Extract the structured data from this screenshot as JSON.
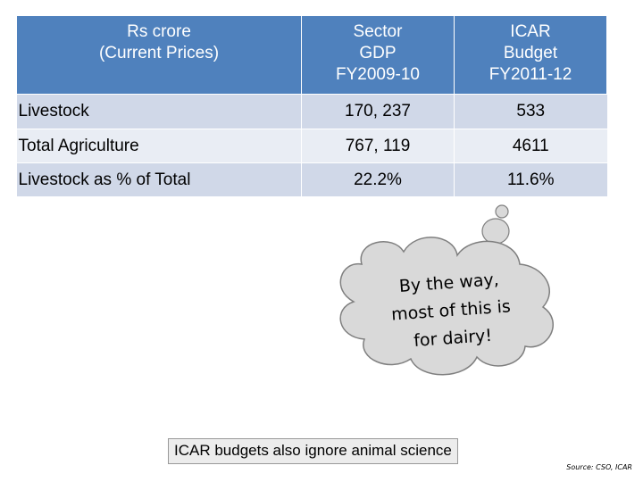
{
  "table": {
    "headers": [
      [
        "Rs crore",
        "(Current Prices)"
      ],
      [
        "Sector",
        "GDP",
        "FY2009-10"
      ],
      [
        "ICAR",
        "Budget",
        "FY2011-12"
      ]
    ],
    "rows": [
      {
        "label": "Livestock",
        "gdp": "170, 237",
        "budget": "533"
      },
      {
        "label": "Total Agriculture",
        "gdp": "767, 119",
        "budget": "4611"
      },
      {
        "label": "Livestock as % of Total",
        "gdp": "22.2%",
        "budget": "11.6%"
      }
    ]
  },
  "cloud": {
    "lines": [
      "By the way,",
      "most of this is",
      "for dairy!"
    ],
    "fill": "#d9d9d9",
    "outline": "#7f7f7f"
  },
  "banner": {
    "text": "ICAR budgets also ignore animal science"
  },
  "source": {
    "text": "Source: CSO, ICAR"
  },
  "colors": {
    "header_bg": "#4f81bd",
    "row_light": "#e9edf4",
    "row_dark": "#d0d8e8"
  }
}
